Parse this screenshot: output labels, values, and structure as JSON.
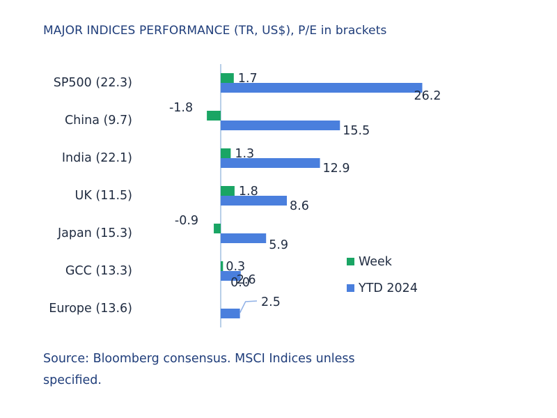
{
  "title": "MAJOR INDICES PERFORMANCE (TR, US$), P/E in brackets",
  "source": "Source: Bloomberg consensus. MSCI Indices unless specified.",
  "chart_data": {
    "type": "bar",
    "orientation": "horizontal",
    "categories": [
      "SP500 (22.3)",
      "China (9.7)",
      "India (22.1)",
      "UK (11.5)",
      "Japan (15.3)",
      "GCC (13.3)",
      "Europe (13.6)"
    ],
    "series": [
      {
        "name": "Week",
        "color": "#1aa564",
        "values": [
          1.7,
          -1.8,
          1.3,
          1.8,
          -0.9,
          0.3,
          0.0
        ]
      },
      {
        "name": "YTD 2024",
        "color": "#4a7fdd",
        "values": [
          26.2,
          15.5,
          12.9,
          8.6,
          5.9,
          2.6,
          2.5
        ]
      }
    ],
    "value_labels": {
      "Week": [
        "1.7",
        "-1.8",
        "1.3",
        "1.8",
        "-0.9",
        "0.3",
        "0.0"
      ],
      "YTD 2024": [
        "26.2",
        "15.5",
        "12.9",
        "8.6",
        "5.9",
        "2.6",
        "2.5"
      ]
    },
    "legend": {
      "position": "right",
      "items": [
        "Week",
        "YTD 2024"
      ]
    },
    "axis_color": "#b8cfe8"
  }
}
